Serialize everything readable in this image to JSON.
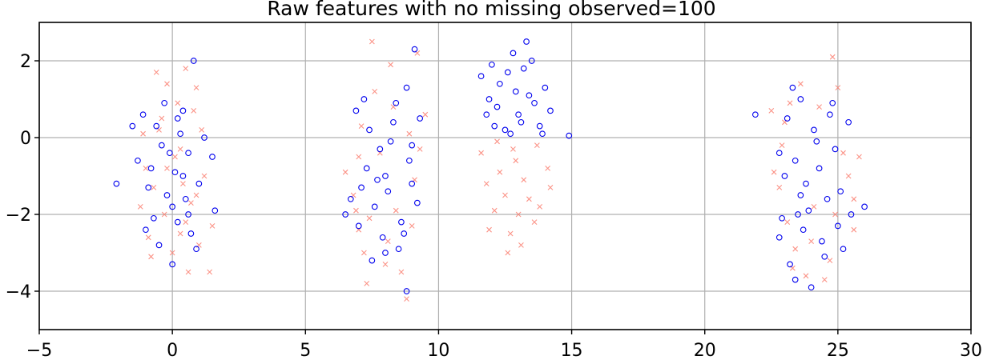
{
  "chart_data": {
    "type": "scatter",
    "title": "Raw features with no missing observed=100",
    "xlabel": "",
    "ylabel": "",
    "xlim": [
      -5,
      30
    ],
    "ylim": [
      -5,
      3
    ],
    "xticks": [
      -5,
      0,
      5,
      10,
      15,
      20,
      25,
      30
    ],
    "xtick_labels": [
      "−5",
      "0",
      "5",
      "10",
      "15",
      "20",
      "25",
      "30"
    ],
    "yticks": [
      -4,
      -2,
      0,
      2
    ],
    "ytick_labels": [
      "−4",
      "−2",
      "0",
      "2"
    ],
    "grid": true,
    "legend": "none",
    "series": [
      {
        "marker": "x",
        "color": "#fa8072",
        "values": [
          [
            0.1,
            -0.5
          ],
          [
            -0.6,
            1.7
          ],
          [
            0.5,
            1.8
          ],
          [
            -0.2,
            1.4
          ],
          [
            0.9,
            1.3
          ],
          [
            -1,
            -0.8
          ],
          [
            0.3,
            -2.5
          ],
          [
            -0.8,
            -3.1
          ],
          [
            1.0,
            -2.8
          ],
          [
            0.6,
            -3.5
          ],
          [
            1.4,
            -3.5
          ],
          [
            1.5,
            -2.3
          ],
          [
            -1.2,
            -1.8
          ],
          [
            0.8,
            0.7
          ],
          [
            -0.5,
            0.2
          ],
          [
            0.4,
            -1.2
          ],
          [
            -0.3,
            -2.0
          ],
          [
            1.2,
            -1.0
          ],
          [
            0.2,
            0.9
          ],
          [
            -0.9,
            -2.6
          ],
          [
            0.7,
            -1.7
          ],
          [
            -0.2,
            -0.8
          ],
          [
            0.0,
            -3.0
          ],
          [
            1.1,
            0.2
          ],
          [
            -0.7,
            -1.3
          ],
          [
            0.5,
            -2.2
          ],
          [
            -0.4,
            0.5
          ],
          [
            0.9,
            -1.5
          ],
          [
            -1.1,
            0.1
          ],
          [
            0.3,
            -0.3
          ],
          [
            7.5,
            2.5
          ],
          [
            8.2,
            1.9
          ],
          [
            7.0,
            -0.5
          ],
          [
            6.8,
            -1.5
          ],
          [
            7.2,
            -3.0
          ],
          [
            7.0,
            -2.4
          ],
          [
            7.3,
            -3.8
          ],
          [
            8.0,
            -3.3
          ],
          [
            8.6,
            -3.5
          ],
          [
            8.8,
            -4.2
          ],
          [
            9.0,
            -2.3
          ],
          [
            9.5,
            0.6
          ],
          [
            9.2,
            2.2
          ],
          [
            6.5,
            -0.9
          ],
          [
            7.8,
            -0.4
          ],
          [
            8.4,
            -1.9
          ],
          [
            7.6,
            1.2
          ],
          [
            9.1,
            -1.1
          ],
          [
            7.1,
            0.3
          ],
          [
            8.9,
            0.1
          ],
          [
            7.4,
            -2.1
          ],
          [
            8.1,
            -2.7
          ],
          [
            6.9,
            -1.9
          ],
          [
            9.3,
            -0.3
          ],
          [
            8.3,
            0.8
          ],
          [
            12.5,
            -1.5
          ],
          [
            13.0,
            -2.0
          ],
          [
            12.6,
            -3.0
          ],
          [
            11.9,
            -2.4
          ],
          [
            13.6,
            -2.2
          ],
          [
            13.8,
            -1.8
          ],
          [
            12.9,
            -0.6
          ],
          [
            11.6,
            -0.4
          ],
          [
            14.1,
            -0.8
          ],
          [
            13.2,
            -1.1
          ],
          [
            12.1,
            -1.9
          ],
          [
            12.8,
            -0.3
          ],
          [
            13.4,
            -1.6
          ],
          [
            12.3,
            -0.9
          ],
          [
            13.7,
            -0.2
          ],
          [
            11.8,
            -1.2
          ],
          [
            12.7,
            -2.5
          ],
          [
            14.2,
            -1.3
          ],
          [
            12.2,
            -0.1
          ],
          [
            13.1,
            -2.8
          ],
          [
            22.6,
            -0.9
          ],
          [
            23.2,
            0.9
          ],
          [
            24.8,
            2.1
          ],
          [
            25.6,
            -1.6
          ],
          [
            25.6,
            -2.4
          ],
          [
            22.8,
            -1.3
          ],
          [
            23.8,
            -3.6
          ],
          [
            24.5,
            -3.7
          ],
          [
            24.0,
            -2.7
          ],
          [
            25.2,
            -0.4
          ],
          [
            23.0,
            0.4
          ],
          [
            24.3,
            0.8
          ],
          [
            22.5,
            0.7
          ],
          [
            25.8,
            -0.5
          ],
          [
            23.4,
            -2.9
          ],
          [
            24.7,
            -3.2
          ],
          [
            23.1,
            -2.2
          ],
          [
            25.0,
            1.3
          ],
          [
            22.9,
            -0.2
          ],
          [
            24.1,
            -1.8
          ],
          [
            23.6,
            1.4
          ],
          [
            25.4,
            -1.0
          ],
          [
            23.3,
            -3.4
          ],
          [
            24.9,
            -2.0
          ]
        ]
      },
      {
        "marker": "o",
        "color": "#0000ee",
        "values": [
          [
            0.8,
            2.0
          ],
          [
            -1.5,
            0.3
          ],
          [
            -2.1,
            -1.2
          ],
          [
            1.5,
            -0.5
          ],
          [
            1.6,
            -1.9
          ],
          [
            0.0,
            -3.3
          ],
          [
            -0.7,
            -2.1
          ],
          [
            -1.0,
            -2.4
          ],
          [
            0.2,
            0.5
          ],
          [
            -0.4,
            -0.2
          ],
          [
            0.4,
            -1.0
          ],
          [
            0.0,
            -1.8
          ],
          [
            -0.8,
            -0.8
          ],
          [
            0.6,
            -0.4
          ],
          [
            0.3,
            0.1
          ],
          [
            -0.2,
            -1.5
          ],
          [
            0.9,
            -2.9
          ],
          [
            -1.1,
            0.6
          ],
          [
            0.7,
            -2.5
          ],
          [
            0.1,
            -0.9
          ],
          [
            -0.5,
            -2.8
          ],
          [
            1.2,
            0.0
          ],
          [
            -0.3,
            0.9
          ],
          [
            0.5,
            -1.6
          ],
          [
            -0.9,
            -1.3
          ],
          [
            0.2,
            -2.2
          ],
          [
            -0.6,
            0.3
          ],
          [
            1.0,
            -1.2
          ],
          [
            -1.3,
            -0.6
          ],
          [
            0.4,
            0.7
          ],
          [
            -0.1,
            -0.4
          ],
          [
            0.6,
            -2.0
          ],
          [
            7.2,
            1.0
          ],
          [
            6.9,
            0.7
          ],
          [
            8.8,
            1.3
          ],
          [
            9.1,
            2.3
          ],
          [
            9.3,
            0.5
          ],
          [
            9.0,
            -1.2
          ],
          [
            8.5,
            -2.9
          ],
          [
            8.8,
            -4.0
          ],
          [
            7.5,
            -3.2
          ],
          [
            6.7,
            -1.6
          ],
          [
            6.5,
            -2.0
          ],
          [
            7.0,
            -2.3
          ],
          [
            8.0,
            -1.0
          ],
          [
            7.8,
            -0.3
          ],
          [
            8.3,
            0.4
          ],
          [
            7.6,
            -1.8
          ],
          [
            8.6,
            -2.2
          ],
          [
            7.3,
            -0.8
          ],
          [
            8.1,
            -1.4
          ],
          [
            8.9,
            -0.6
          ],
          [
            7.9,
            -2.6
          ],
          [
            8.4,
            0.9
          ],
          [
            7.4,
            0.2
          ],
          [
            9.2,
            -1.7
          ],
          [
            8.2,
            -0.1
          ],
          [
            7.7,
            -1.1
          ],
          [
            8.7,
            -2.5
          ],
          [
            7.1,
            -1.3
          ],
          [
            8.0,
            -3.0
          ],
          [
            9.0,
            -0.2
          ],
          [
            11.6,
            1.6
          ],
          [
            12.0,
            1.9
          ],
          [
            12.6,
            1.7
          ],
          [
            13.3,
            2.5
          ],
          [
            13.5,
            2.0
          ],
          [
            14.0,
            1.3
          ],
          [
            14.9,
            0.05
          ],
          [
            12.2,
            0.8
          ],
          [
            13.0,
            0.6
          ],
          [
            13.8,
            0.3
          ],
          [
            12.5,
            0.2
          ],
          [
            12.9,
            1.2
          ],
          [
            11.8,
            0.6
          ],
          [
            13.6,
            0.9
          ],
          [
            12.3,
            1.4
          ],
          [
            13.1,
            0.4
          ],
          [
            12.7,
            0.1
          ],
          [
            14.2,
            0.7
          ],
          [
            12.1,
            0.3
          ],
          [
            13.4,
            1.1
          ],
          [
            12.8,
            2.2
          ],
          [
            13.9,
            0.1
          ],
          [
            11.9,
            1.0
          ],
          [
            13.2,
            1.8
          ],
          [
            21.9,
            0.6
          ],
          [
            23.3,
            1.3
          ],
          [
            23.6,
            1.0
          ],
          [
            24.8,
            0.9
          ],
          [
            25.4,
            0.4
          ],
          [
            25.5,
            -2.0
          ],
          [
            26.0,
            -1.8
          ],
          [
            25.2,
            -2.9
          ],
          [
            24.0,
            -3.9
          ],
          [
            23.4,
            -3.7
          ],
          [
            22.8,
            -2.6
          ],
          [
            23.2,
            -3.3
          ],
          [
            22.8,
            -0.4
          ],
          [
            23.8,
            -1.2
          ],
          [
            24.3,
            -0.8
          ],
          [
            24.6,
            -1.6
          ],
          [
            23.5,
            -2.0
          ],
          [
            24.1,
            0.2
          ],
          [
            23.0,
            -1.0
          ],
          [
            24.9,
            -0.3
          ],
          [
            23.7,
            -2.4
          ],
          [
            24.4,
            -2.7
          ],
          [
            23.1,
            0.5
          ],
          [
            25.1,
            -1.4
          ],
          [
            24.2,
            -0.1
          ],
          [
            23.9,
            -1.9
          ],
          [
            24.7,
            0.6
          ],
          [
            23.4,
            -0.6
          ],
          [
            25.0,
            -2.3
          ],
          [
            24.5,
            -3.1
          ],
          [
            23.6,
            -1.5
          ],
          [
            22.9,
            -2.1
          ]
        ]
      }
    ]
  }
}
